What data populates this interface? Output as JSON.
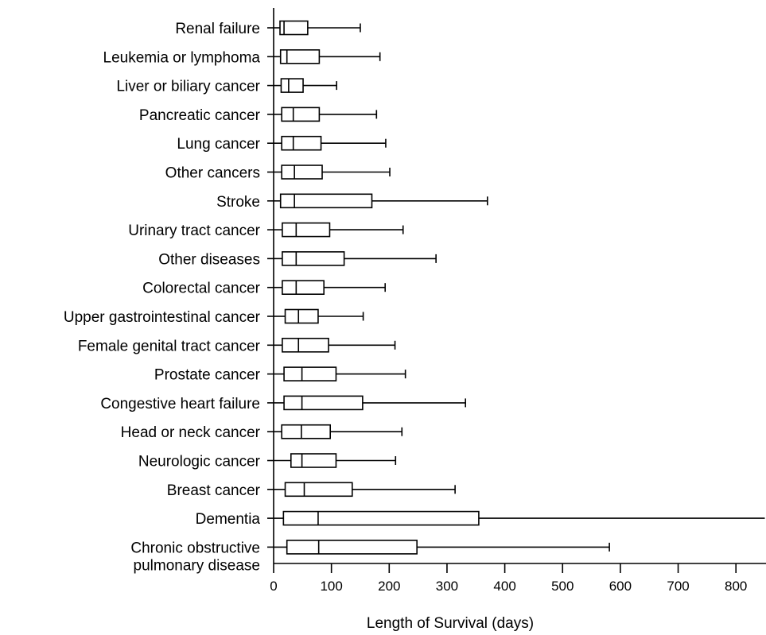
{
  "chart_data": {
    "type": "boxplot",
    "orientation": "horizontal",
    "title": "",
    "xlabel": "Length of Survival (days)",
    "ylabel": "",
    "xlim": [
      0,
      850
    ],
    "x_ticks": [
      0,
      100,
      200,
      300,
      400,
      500,
      600,
      700,
      800
    ],
    "grid": false,
    "legend": "none",
    "categories": [
      {
        "label": [
          "Renal failure"
        ],
        "whisker_low": 0,
        "q1": 11,
        "median": 18,
        "q3": 59,
        "whisker_high": 150,
        "open_ended": false
      },
      {
        "label": [
          "Leukemia or lymphoma"
        ],
        "whisker_low": 0,
        "q1": 12,
        "median": 23,
        "q3": 79,
        "whisker_high": 184,
        "open_ended": false
      },
      {
        "label": [
          "Liver or biliary cancer"
        ],
        "whisker_low": 0,
        "q1": 13,
        "median": 26,
        "q3": 51,
        "whisker_high": 109,
        "open_ended": false
      },
      {
        "label": [
          "Pancreatic cancer"
        ],
        "whisker_low": 0,
        "q1": 14,
        "median": 34,
        "q3": 79,
        "whisker_high": 178,
        "open_ended": false
      },
      {
        "label": [
          "Lung cancer"
        ],
        "whisker_low": 0,
        "q1": 14,
        "median": 34,
        "q3": 82,
        "whisker_high": 194,
        "open_ended": false
      },
      {
        "label": [
          "Other cancers"
        ],
        "whisker_low": 0,
        "q1": 14,
        "median": 36,
        "q3": 84,
        "whisker_high": 201,
        "open_ended": false
      },
      {
        "label": [
          "Stroke"
        ],
        "whisker_low": 0,
        "q1": 12,
        "median": 36,
        "q3": 170,
        "whisker_high": 370,
        "open_ended": false
      },
      {
        "label": [
          "Urinary tract cancer"
        ],
        "whisker_low": 0,
        "q1": 15,
        "median": 39,
        "q3": 97,
        "whisker_high": 224,
        "open_ended": false
      },
      {
        "label": [
          "Other diseases"
        ],
        "whisker_low": 0,
        "q1": 15,
        "median": 39,
        "q3": 122,
        "whisker_high": 281,
        "open_ended": false
      },
      {
        "label": [
          "Colorectal cancer"
        ],
        "whisker_low": 0,
        "q1": 15,
        "median": 39,
        "q3": 87,
        "whisker_high": 193,
        "open_ended": false
      },
      {
        "label": [
          "Upper gastrointestinal cancer"
        ],
        "whisker_low": 0,
        "q1": 20,
        "median": 43,
        "q3": 77,
        "whisker_high": 155,
        "open_ended": false
      },
      {
        "label": [
          "Female genital tract cancer"
        ],
        "whisker_low": 0,
        "q1": 15,
        "median": 43,
        "q3": 95,
        "whisker_high": 210,
        "open_ended": false
      },
      {
        "label": [
          "Prostate cancer"
        ],
        "whisker_low": 0,
        "q1": 18,
        "median": 49,
        "q3": 108,
        "whisker_high": 228,
        "open_ended": false
      },
      {
        "label": [
          "Congestive heart failure"
        ],
        "whisker_low": 0,
        "q1": 18,
        "median": 49,
        "q3": 154,
        "whisker_high": 332,
        "open_ended": false
      },
      {
        "label": [
          "Head or neck cancer"
        ],
        "whisker_low": 0,
        "q1": 14,
        "median": 48,
        "q3": 98,
        "whisker_high": 222,
        "open_ended": false
      },
      {
        "label": [
          "Neurologic cancer"
        ],
        "whisker_low": 0,
        "q1": 30,
        "median": 49,
        "q3": 108,
        "whisker_high": 211,
        "open_ended": false
      },
      {
        "label": [
          "Breast cancer"
        ],
        "whisker_low": 0,
        "q1": 20,
        "median": 53,
        "q3": 136,
        "whisker_high": 314,
        "open_ended": false
      },
      {
        "label": [
          "Dementia"
        ],
        "whisker_low": 0,
        "q1": 17,
        "median": 77,
        "q3": 355,
        "whisker_high": 850,
        "open_ended": true
      },
      {
        "label": [
          "Chronic obstructive",
          "pulmonary disease"
        ],
        "whisker_low": 0,
        "q1": 23,
        "median": 78,
        "q3": 248,
        "whisker_high": 581,
        "open_ended": false
      }
    ]
  }
}
